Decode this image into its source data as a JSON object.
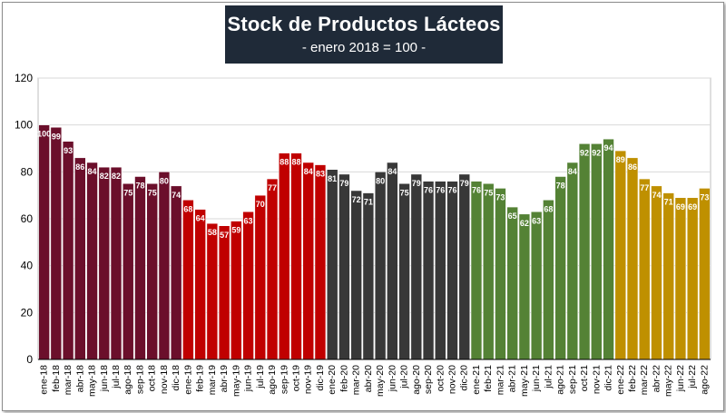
{
  "chart_data": {
    "type": "bar",
    "title": "Stock de Productos Lácteos",
    "subtitle": "- enero 2018 = 100 -",
    "xlabel": "",
    "ylabel": "",
    "ylim": [
      0,
      120
    ],
    "yticks": [
      0,
      20,
      40,
      60,
      80,
      100,
      120
    ],
    "grid": true,
    "categories": [
      "ene-18",
      "feb-18",
      "mar-18",
      "abr-18",
      "may-18",
      "jun-18",
      "jul-18",
      "ago-18",
      "sep-18",
      "oct-18",
      "nov-18",
      "dic-18",
      "ene-19",
      "feb-19",
      "mar-19",
      "abr-19",
      "may-19",
      "jun-19",
      "jul-19",
      "ago-19",
      "sep-19",
      "oct-19",
      "nov-19",
      "dic-19",
      "ene-20",
      "feb-20",
      "mar-20",
      "abr-20",
      "may-20",
      "jun-20",
      "jul-20",
      "ago-20",
      "sep-20",
      "oct-20",
      "nov-20",
      "dic-20",
      "ene-21",
      "feb-21",
      "mar-21",
      "abr-21",
      "may-21",
      "jun-21",
      "jul-21",
      "ago-21",
      "sep-21",
      "oct-21",
      "nov-21",
      "dic-21",
      "ene-22",
      "feb-22",
      "mar-22",
      "abr-22",
      "may-22",
      "jun-22",
      "jul-22",
      "ago-22"
    ],
    "values": [
      100,
      99,
      93,
      86,
      84,
      82,
      82,
      75,
      78,
      75,
      80,
      74,
      68,
      64,
      58,
      57,
      59,
      63,
      70,
      77,
      88,
      88,
      84,
      83,
      81,
      79,
      72,
      71,
      80,
      84,
      75,
      79,
      76,
      76,
      76,
      79,
      76,
      75,
      73,
      65,
      62,
      63,
      68,
      78,
      84,
      92,
      92,
      94,
      89,
      86,
      77,
      74,
      71,
      69,
      69,
      73
    ],
    "labels": [
      "100",
      "99",
      "93",
      "86",
      "84",
      "82",
      "82",
      "75",
      "78",
      "75",
      "80",
      "74",
      "68",
      "64",
      "58",
      "57",
      "59",
      "63",
      "70",
      "77",
      "88",
      "88",
      "84",
      "83",
      "81",
      "79",
      "72",
      "71",
      "80",
      "84",
      "75",
      "79",
      "76",
      "76",
      "76",
      "79",
      "76",
      "75",
      "73",
      "65",
      "62",
      "63",
      "68",
      "78",
      "84",
      "92",
      "92",
      "94",
      "89",
      "86",
      "77",
      "74",
      "71",
      "69",
      "69",
      "73"
    ],
    "series_colors": [
      {
        "year": "2018",
        "color": "#6b0f2b"
      },
      {
        "year": "2019",
        "color": "#c00000"
      },
      {
        "year": "2020",
        "color": "#383838"
      },
      {
        "year": "2021",
        "color": "#548235"
      },
      {
        "year": "2022",
        "color": "#bf9000"
      }
    ]
  }
}
